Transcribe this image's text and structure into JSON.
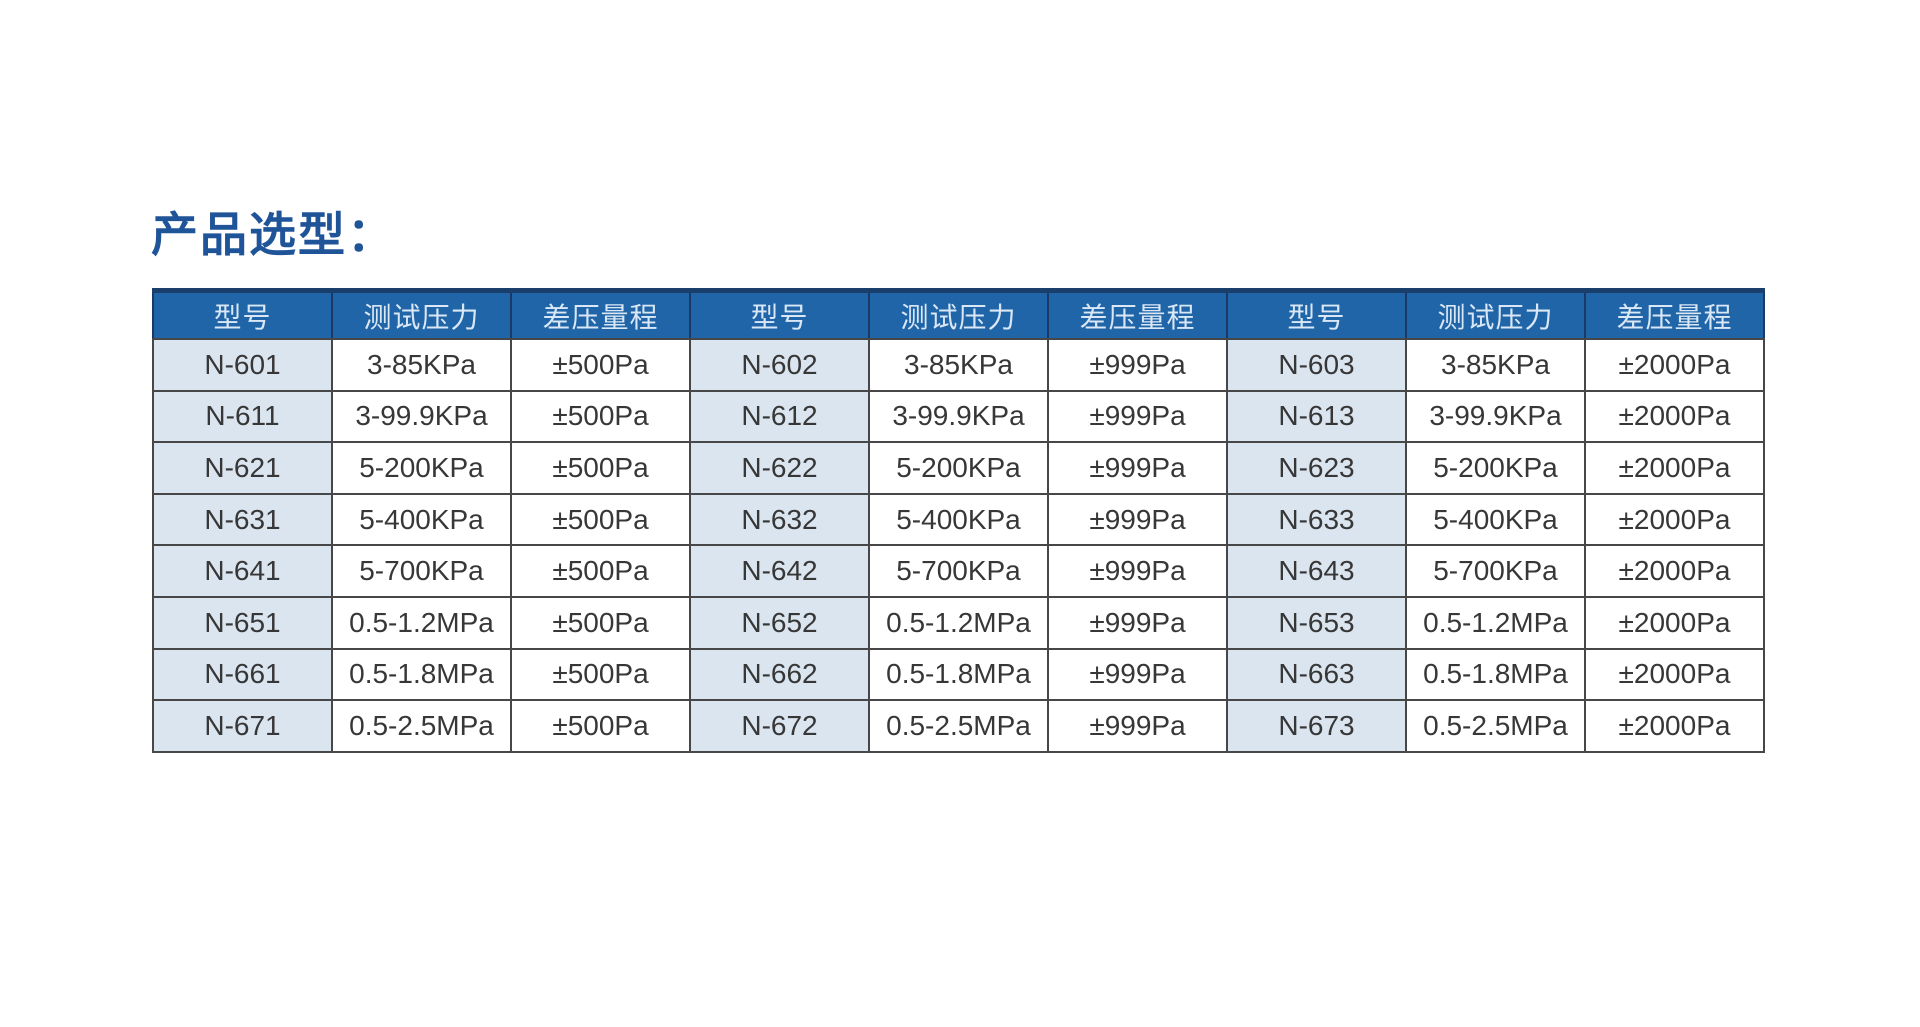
{
  "page": {
    "title": "产品选型："
  },
  "colors": {
    "title_color": "#1F5498",
    "header_bg": "#2065A7",
    "header_text": "#D9E7F6",
    "header_top_border": "#1B3F6D",
    "header_divider": "#1A3A64",
    "grid_border": "#474747",
    "cell_text": "#373737",
    "cell_bg": "#FFFFFF",
    "model_cell_bg": "#DAE5F0"
  },
  "table": {
    "headers": [
      "型号",
      "测试压力",
      "差压量程",
      "型号",
      "测试压力",
      "差压量程",
      "型号",
      "测试压力",
      "差压量程"
    ],
    "rows": [
      [
        "N-601",
        "3-85KPa",
        "±500Pa",
        "N-602",
        "3-85KPa",
        "±999Pa",
        "N-603",
        "3-85KPa",
        "±2000Pa"
      ],
      [
        "N-611",
        "3-99.9KPa",
        "±500Pa",
        "N-612",
        "3-99.9KPa",
        "±999Pa",
        "N-613",
        "3-99.9KPa",
        "±2000Pa"
      ],
      [
        "N-621",
        "5-200KPa",
        "±500Pa",
        "N-622",
        "5-200KPa",
        "±999Pa",
        "N-623",
        "5-200KPa",
        "±2000Pa"
      ],
      [
        "N-631",
        "5-400KPa",
        "±500Pa",
        "N-632",
        "5-400KPa",
        "±999Pa",
        "N-633",
        "5-400KPa",
        "±2000Pa"
      ],
      [
        "N-641",
        "5-700KPa",
        "±500Pa",
        "N-642",
        "5-700KPa",
        "±999Pa",
        "N-643",
        "5-700KPa",
        "±2000Pa"
      ],
      [
        "N-651",
        "0.5-1.2MPa",
        "±500Pa",
        "N-652",
        "0.5-1.2MPa",
        "±999Pa",
        "N-653",
        "0.5-1.2MPa",
        "±2000Pa"
      ],
      [
        "N-661",
        "0.5-1.8MPa",
        "±500Pa",
        "N-662",
        "0.5-1.8MPa",
        "±999Pa",
        "N-663",
        "0.5-1.8MPa",
        "±2000Pa"
      ],
      [
        "N-671",
        "0.5-2.5MPa",
        "±500Pa",
        "N-672",
        "0.5-2.5MPa",
        "±999Pa",
        "N-673",
        "0.5-2.5MPa",
        "±2000Pa"
      ]
    ]
  },
  "chart_data": {
    "type": "table",
    "title": "产品选型",
    "columns": [
      "型号",
      "测试压力",
      "差压量程"
    ],
    "records": [
      {
        "型号": "N-601",
        "测试压力": "3-85KPa",
        "差压量程": "±500Pa"
      },
      {
        "型号": "N-611",
        "测试压力": "3-99.9KPa",
        "差压量程": "±500Pa"
      },
      {
        "型号": "N-621",
        "测试压力": "5-200KPa",
        "差压量程": "±500Pa"
      },
      {
        "型号": "N-631",
        "测试压力": "5-400KPa",
        "差压量程": "±500Pa"
      },
      {
        "型号": "N-641",
        "测试压力": "5-700KPa",
        "差压量程": "±500Pa"
      },
      {
        "型号": "N-651",
        "测试压力": "0.5-1.2MPa",
        "差压量程": "±500Pa"
      },
      {
        "型号": "N-661",
        "测试压力": "0.5-1.8MPa",
        "差压量程": "±500Pa"
      },
      {
        "型号": "N-671",
        "测试压力": "0.5-2.5MPa",
        "差压量程": "±500Pa"
      },
      {
        "型号": "N-602",
        "测试压力": "3-85KPa",
        "差压量程": "±999Pa"
      },
      {
        "型号": "N-612",
        "测试压力": "3-99.9KPa",
        "差压量程": "±999Pa"
      },
      {
        "型号": "N-622",
        "测试压力": "5-200KPa",
        "差压量程": "±999Pa"
      },
      {
        "型号": "N-632",
        "测试压力": "5-400KPa",
        "差压量程": "±999Pa"
      },
      {
        "型号": "N-642",
        "测试压力": "5-700KPa",
        "差压量程": "±999Pa"
      },
      {
        "型号": "N-652",
        "测试压力": "0.5-1.2MPa",
        "差压量程": "±999Pa"
      },
      {
        "型号": "N-662",
        "测试压力": "0.5-1.8MPa",
        "差压量程": "±999Pa"
      },
      {
        "型号": "N-672",
        "测试压力": "0.5-2.5MPa",
        "差压量程": "±999Pa"
      },
      {
        "型号": "N-603",
        "测试压力": "3-85KPa",
        "差压量程": "±2000Pa"
      },
      {
        "型号": "N-613",
        "测试压力": "3-99.9KPa",
        "差压量程": "±2000Pa"
      },
      {
        "型号": "N-623",
        "测试压力": "5-200KPa",
        "差压量程": "±2000Pa"
      },
      {
        "型号": "N-633",
        "测试压力": "5-400KPa",
        "差压量程": "±2000Pa"
      },
      {
        "型号": "N-643",
        "测试压力": "5-700KPa",
        "差压量程": "±2000Pa"
      },
      {
        "型号": "N-653",
        "测试压力": "0.5-1.2MPa",
        "差压量程": "±2000Pa"
      },
      {
        "型号": "N-663",
        "测试压力": "0.5-1.8MPa",
        "差压量程": "±2000Pa"
      },
      {
        "型号": "N-673",
        "测试压力": "0.5-2.5MPa",
        "差压量程": "±2000Pa"
      }
    ]
  }
}
